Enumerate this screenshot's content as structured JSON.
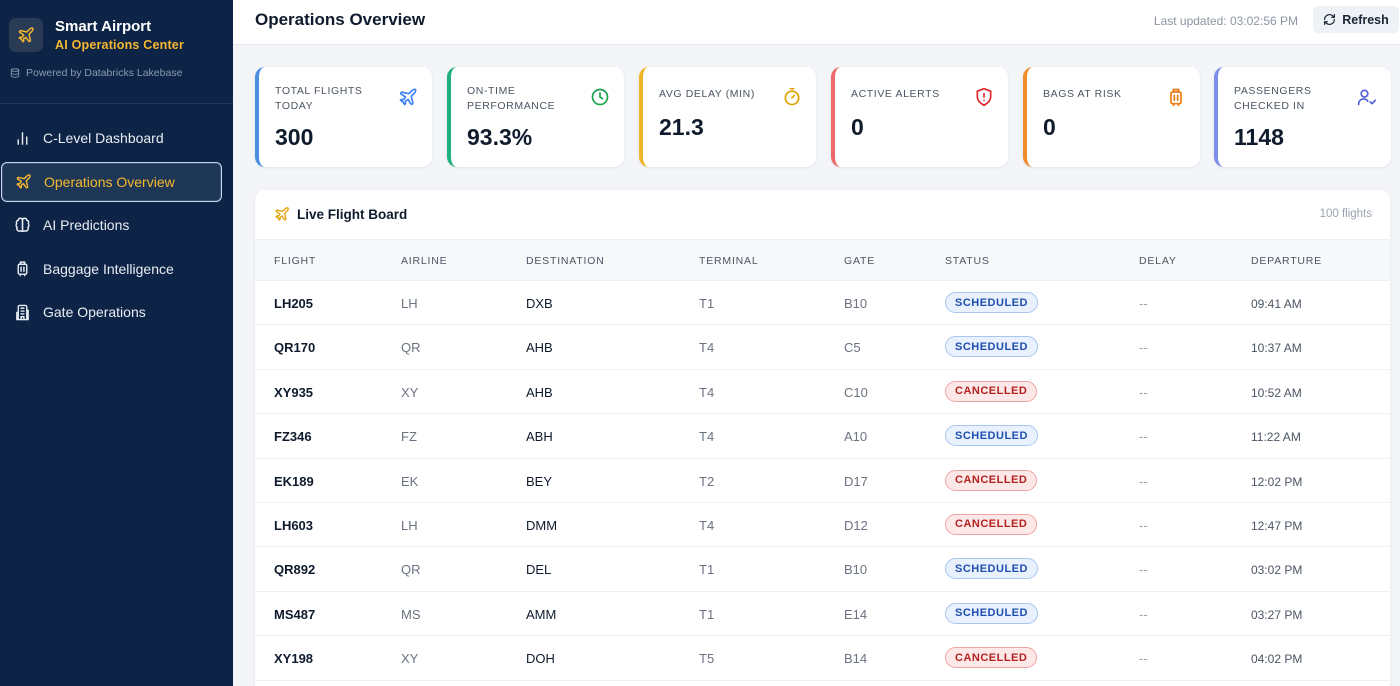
{
  "brand": {
    "title": "Smart Airport",
    "subtitle": "AI Operations Center",
    "powered": "Powered by Databricks Lakebase"
  },
  "nav": [
    {
      "label": "C-Level Dashboard",
      "icon": "bar-chart-icon",
      "active": false
    },
    {
      "label": "Operations Overview",
      "icon": "plane-icon",
      "active": true
    },
    {
      "label": "AI Predictions",
      "icon": "brain-icon",
      "active": false
    },
    {
      "label": "Baggage Intelligence",
      "icon": "luggage-icon",
      "active": false
    },
    {
      "label": "Gate Operations",
      "icon": "building-icon",
      "active": false
    }
  ],
  "header": {
    "title": "Operations Overview",
    "last_updated": "Last updated: 03:02:56 PM",
    "refresh_label": "Refresh"
  },
  "kpis": [
    {
      "label": "TOTAL FLIGHTS TODAY",
      "value": "300",
      "icon": "plane-icon",
      "color": "#4a90e2"
    },
    {
      "label": "ON-TIME PERFORMANCE",
      "value": "93.3%",
      "icon": "clock-icon",
      "color": "#22b07d"
    },
    {
      "label": "AVG DELAY (MIN)",
      "value": "21.3",
      "icon": "timer-icon",
      "color": "#f0b429"
    },
    {
      "label": "ACTIVE ALERTS",
      "value": "0",
      "icon": "shield-alert-icon",
      "color": "#ec6a6a"
    },
    {
      "label": "BAGS AT RISK",
      "value": "0",
      "icon": "luggage-icon",
      "color": "#f08c2e"
    },
    {
      "label": "PASSENGERS CHECKED IN",
      "value": "1148",
      "icon": "user-check-icon",
      "color": "#7b8ee8"
    }
  ],
  "board": {
    "title": "Live Flight Board",
    "count": "100 flights",
    "columns": [
      "FLIGHT",
      "AIRLINE",
      "DESTINATION",
      "TERMINAL",
      "GATE",
      "STATUS",
      "DELAY",
      "DEPARTURE"
    ],
    "rows": [
      {
        "flight": "LH205",
        "airline": "LH",
        "destination": "DXB",
        "terminal": "T1",
        "gate": "B10",
        "status": "SCHEDULED",
        "delay": "--",
        "departure": "09:41 AM"
      },
      {
        "flight": "QR170",
        "airline": "QR",
        "destination": "AHB",
        "terminal": "T4",
        "gate": "C5",
        "status": "SCHEDULED",
        "delay": "--",
        "departure": "10:37 AM"
      },
      {
        "flight": "XY935",
        "airline": "XY",
        "destination": "AHB",
        "terminal": "T4",
        "gate": "C10",
        "status": "CANCELLED",
        "delay": "--",
        "departure": "10:52 AM"
      },
      {
        "flight": "FZ346",
        "airline": "FZ",
        "destination": "ABH",
        "terminal": "T4",
        "gate": "A10",
        "status": "SCHEDULED",
        "delay": "--",
        "departure": "11:22 AM"
      },
      {
        "flight": "EK189",
        "airline": "EK",
        "destination": "BEY",
        "terminal": "T2",
        "gate": "D17",
        "status": "CANCELLED",
        "delay": "--",
        "departure": "12:02 PM"
      },
      {
        "flight": "LH603",
        "airline": "LH",
        "destination": "DMM",
        "terminal": "T4",
        "gate": "D12",
        "status": "CANCELLED",
        "delay": "--",
        "departure": "12:47 PM"
      },
      {
        "flight": "QR892",
        "airline": "QR",
        "destination": "DEL",
        "terminal": "T1",
        "gate": "B10",
        "status": "SCHEDULED",
        "delay": "--",
        "departure": "03:02 PM"
      },
      {
        "flight": "MS487",
        "airline": "MS",
        "destination": "AMM",
        "terminal": "T1",
        "gate": "E14",
        "status": "SCHEDULED",
        "delay": "--",
        "departure": "03:27 PM"
      },
      {
        "flight": "XY198",
        "airline": "XY",
        "destination": "DOH",
        "terminal": "T5",
        "gate": "B14",
        "status": "CANCELLED",
        "delay": "--",
        "departure": "04:02 PM"
      }
    ]
  },
  "colors": {
    "sidebar_bg": "#0e2446",
    "accent": "#f5b82e",
    "scheduled": "#1e4fae",
    "cancelled": "#b42121"
  }
}
